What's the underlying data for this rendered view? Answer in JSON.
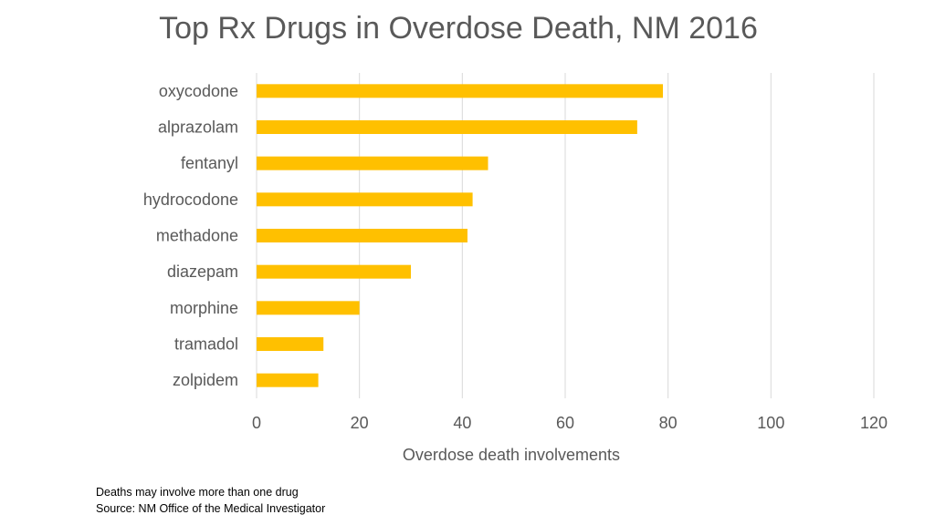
{
  "chart_data": {
    "type": "bar",
    "orientation": "horizontal",
    "title": "Top Rx Drugs in Overdose Death, NM 2016",
    "xlabel": "Overdose death involvements",
    "ylabel": "",
    "categories": [
      "oxycodone",
      "alprazolam",
      "fentanyl",
      "hydrocodone",
      "methadone",
      "diazepam",
      "morphine",
      "tramadol",
      "zolpidem"
    ],
    "values": [
      79,
      74,
      45,
      42,
      41,
      30,
      20,
      13,
      12
    ],
    "xlim": [
      0,
      120
    ],
    "xticks": [
      "0",
      "20",
      "40",
      "60",
      "80",
      "100",
      "120"
    ],
    "grid": "vertical",
    "legend": "none",
    "bar_color": "#FFC000"
  },
  "notes": {
    "line1": "Deaths may involve more than one drug",
    "line2": "Source:  NM Office of the Medical Investigator"
  }
}
